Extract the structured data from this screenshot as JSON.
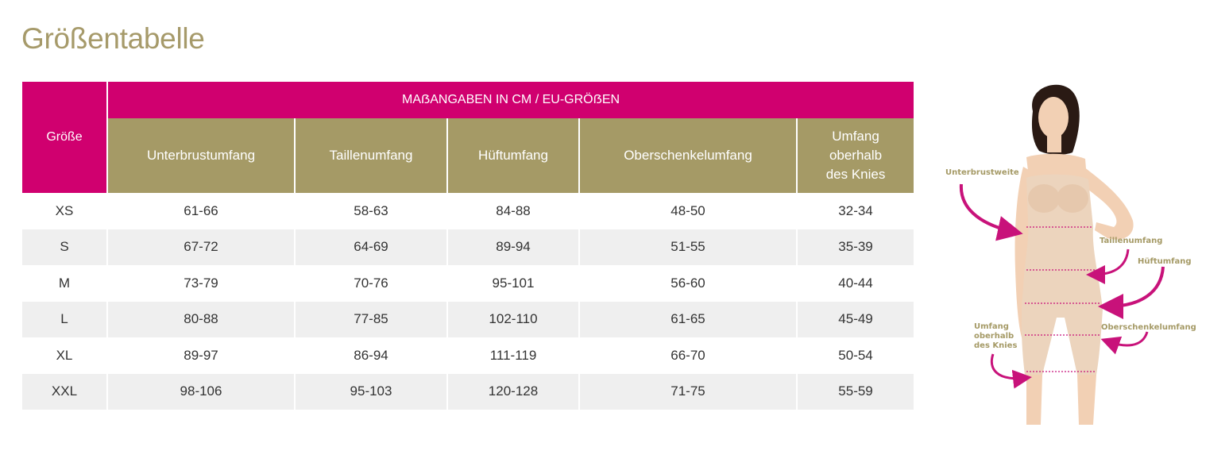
{
  "title": "Größentabelle",
  "table": {
    "size_header": "Größe",
    "group_header": "MAẞANGABEN IN CM / EU-GRÖẞEN",
    "columns": [
      "Unterbrustumfang",
      "Taillenumfang",
      "Hüftumfang",
      "Oberschenkelumfang",
      "Umfang oberhalb des Knies"
    ],
    "rows": [
      {
        "size": "XS",
        "values": [
          "61-66",
          "58-63",
          "84-88",
          "48-50",
          "32-34"
        ]
      },
      {
        "size": "S",
        "values": [
          "67-72",
          "64-69",
          "89-94",
          "51-55",
          "35-39"
        ]
      },
      {
        "size": "M",
        "values": [
          "73-79",
          "70-76",
          "95-101",
          "56-60",
          "40-44"
        ]
      },
      {
        "size": "L",
        "values": [
          "80-88",
          "77-85",
          "102-110",
          "61-65",
          "45-49"
        ]
      },
      {
        "size": "XL",
        "values": [
          "89-97",
          "86-94",
          "111-119",
          "66-70",
          "50-54"
        ]
      },
      {
        "size": "XXL",
        "values": [
          "98-106",
          "95-103",
          "120-128",
          "71-75",
          "55-59"
        ]
      }
    ]
  },
  "figure": {
    "labels": {
      "underbust": "Unterbrustweite",
      "waist": "Taillenumfang",
      "hip": "Hüftumfang",
      "knee_line1": "Umfang",
      "knee_line2": "oberhalb",
      "knee_line3": "des Knies",
      "thigh": "Oberschenkelumfang"
    },
    "colors": {
      "accent": "#c8127a",
      "label": "#a59a66",
      "garment": "#ecd4bd",
      "skin": "#f2d0b4"
    }
  }
}
